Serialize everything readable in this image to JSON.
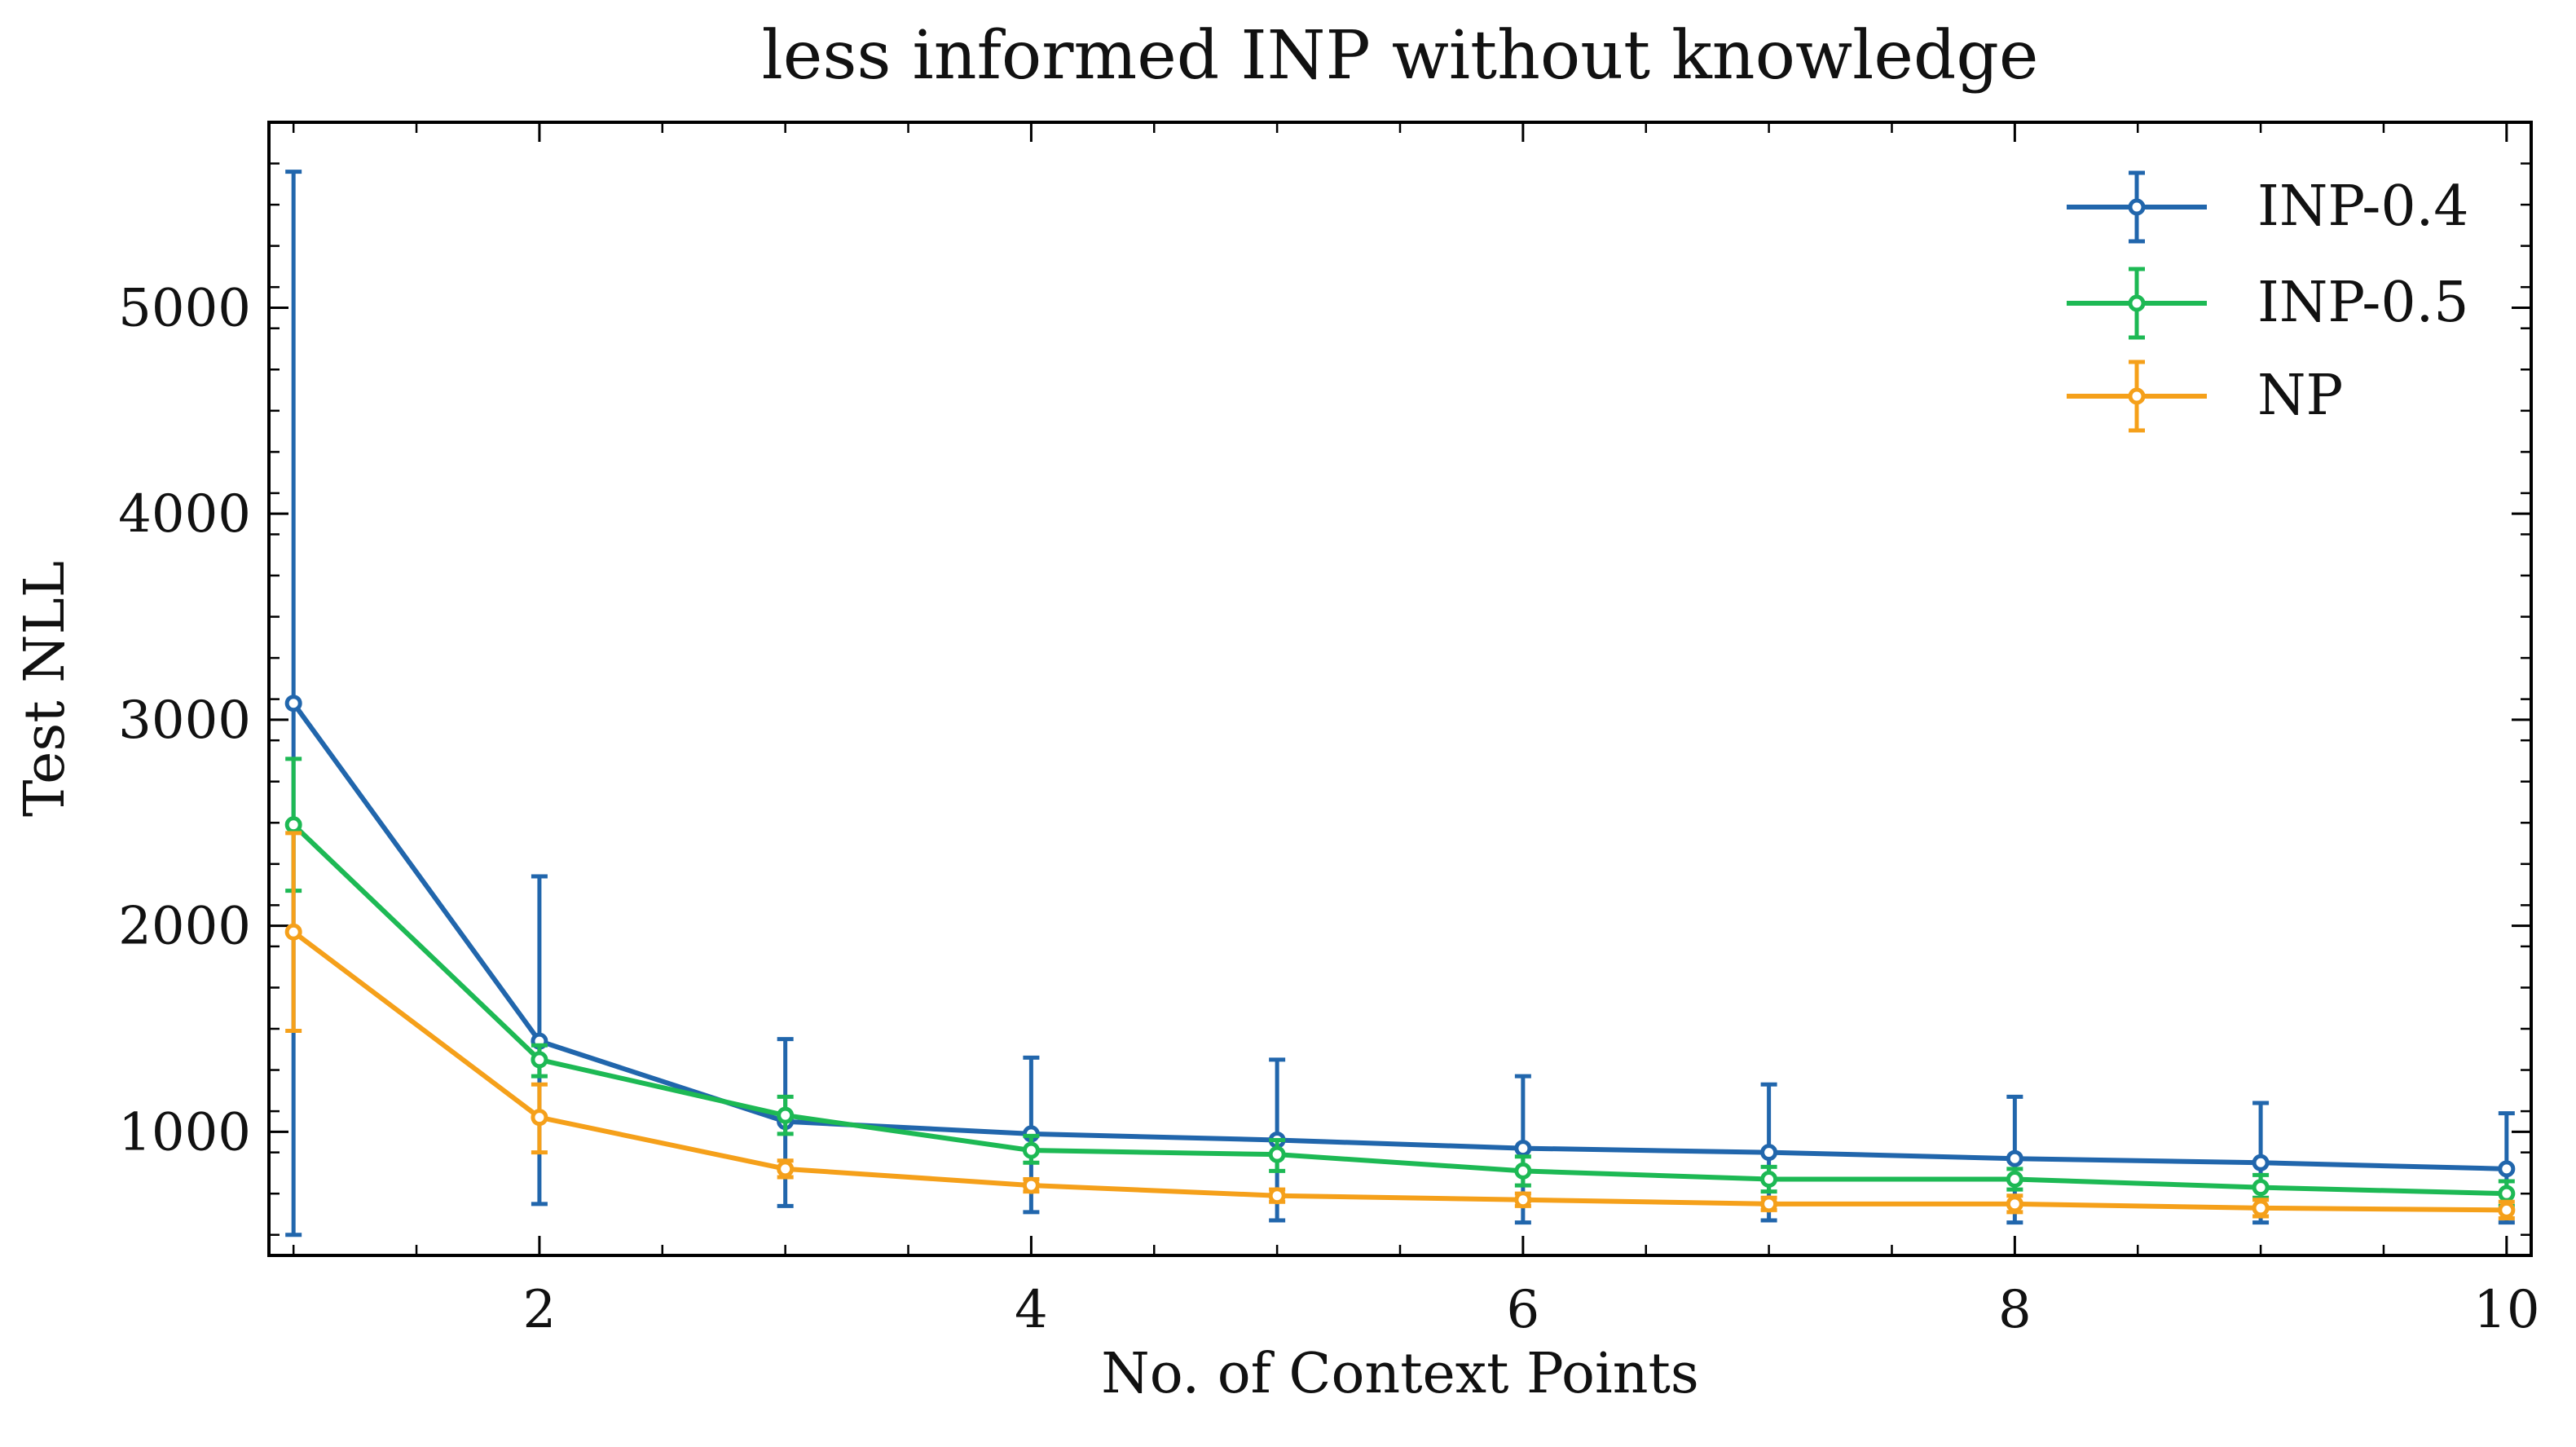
{
  "chart_data": {
    "type": "line",
    "title": "less informed INP without knowledge",
    "xlabel": "No. of Context Points",
    "ylabel": "Test NLL",
    "xlim": [
      0.9,
      10.1
    ],
    "ylim": [
      400,
      5900
    ],
    "xticks": [
      2,
      4,
      6,
      8,
      10
    ],
    "yticks": [
      1000,
      2000,
      3000,
      4000,
      5000
    ],
    "grid": false,
    "legend_position": "top-right",
    "x": [
      1,
      2,
      3,
      4,
      5,
      6,
      7,
      8,
      9,
      10
    ],
    "series": [
      {
        "name": "INP-0.4",
        "color": "#2166ac",
        "values": [
          3080,
          1440,
          1050,
          990,
          960,
          920,
          900,
          870,
          850,
          820
        ],
        "err_low": [
          500,
          650,
          640,
          610,
          570,
          560,
          570,
          560,
          560,
          560
        ],
        "err_high": [
          5660,
          2240,
          1450,
          1360,
          1350,
          1270,
          1230,
          1170,
          1140,
          1090
        ]
      },
      {
        "name": "INP-0.5",
        "color": "#1db954",
        "values": [
          2490,
          1350,
          1080,
          910,
          890,
          810,
          770,
          770,
          730,
          700
        ],
        "err_low": [
          2170,
          1270,
          990,
          850,
          810,
          740,
          710,
          720,
          680,
          640
        ],
        "err_high": [
          2810,
          1420,
          1170,
          980,
          960,
          880,
          830,
          820,
          790,
          760
        ]
      },
      {
        "name": "NP",
        "color": "#f5a01a",
        "values": [
          1970,
          1070,
          820,
          740,
          690,
          670,
          650,
          650,
          630,
          620
        ],
        "err_low": [
          1490,
          900,
          780,
          710,
          660,
          640,
          620,
          610,
          590,
          580
        ],
        "err_high": [
          2450,
          1230,
          860,
          770,
          720,
          700,
          680,
          690,
          670,
          660
        ]
      }
    ]
  }
}
